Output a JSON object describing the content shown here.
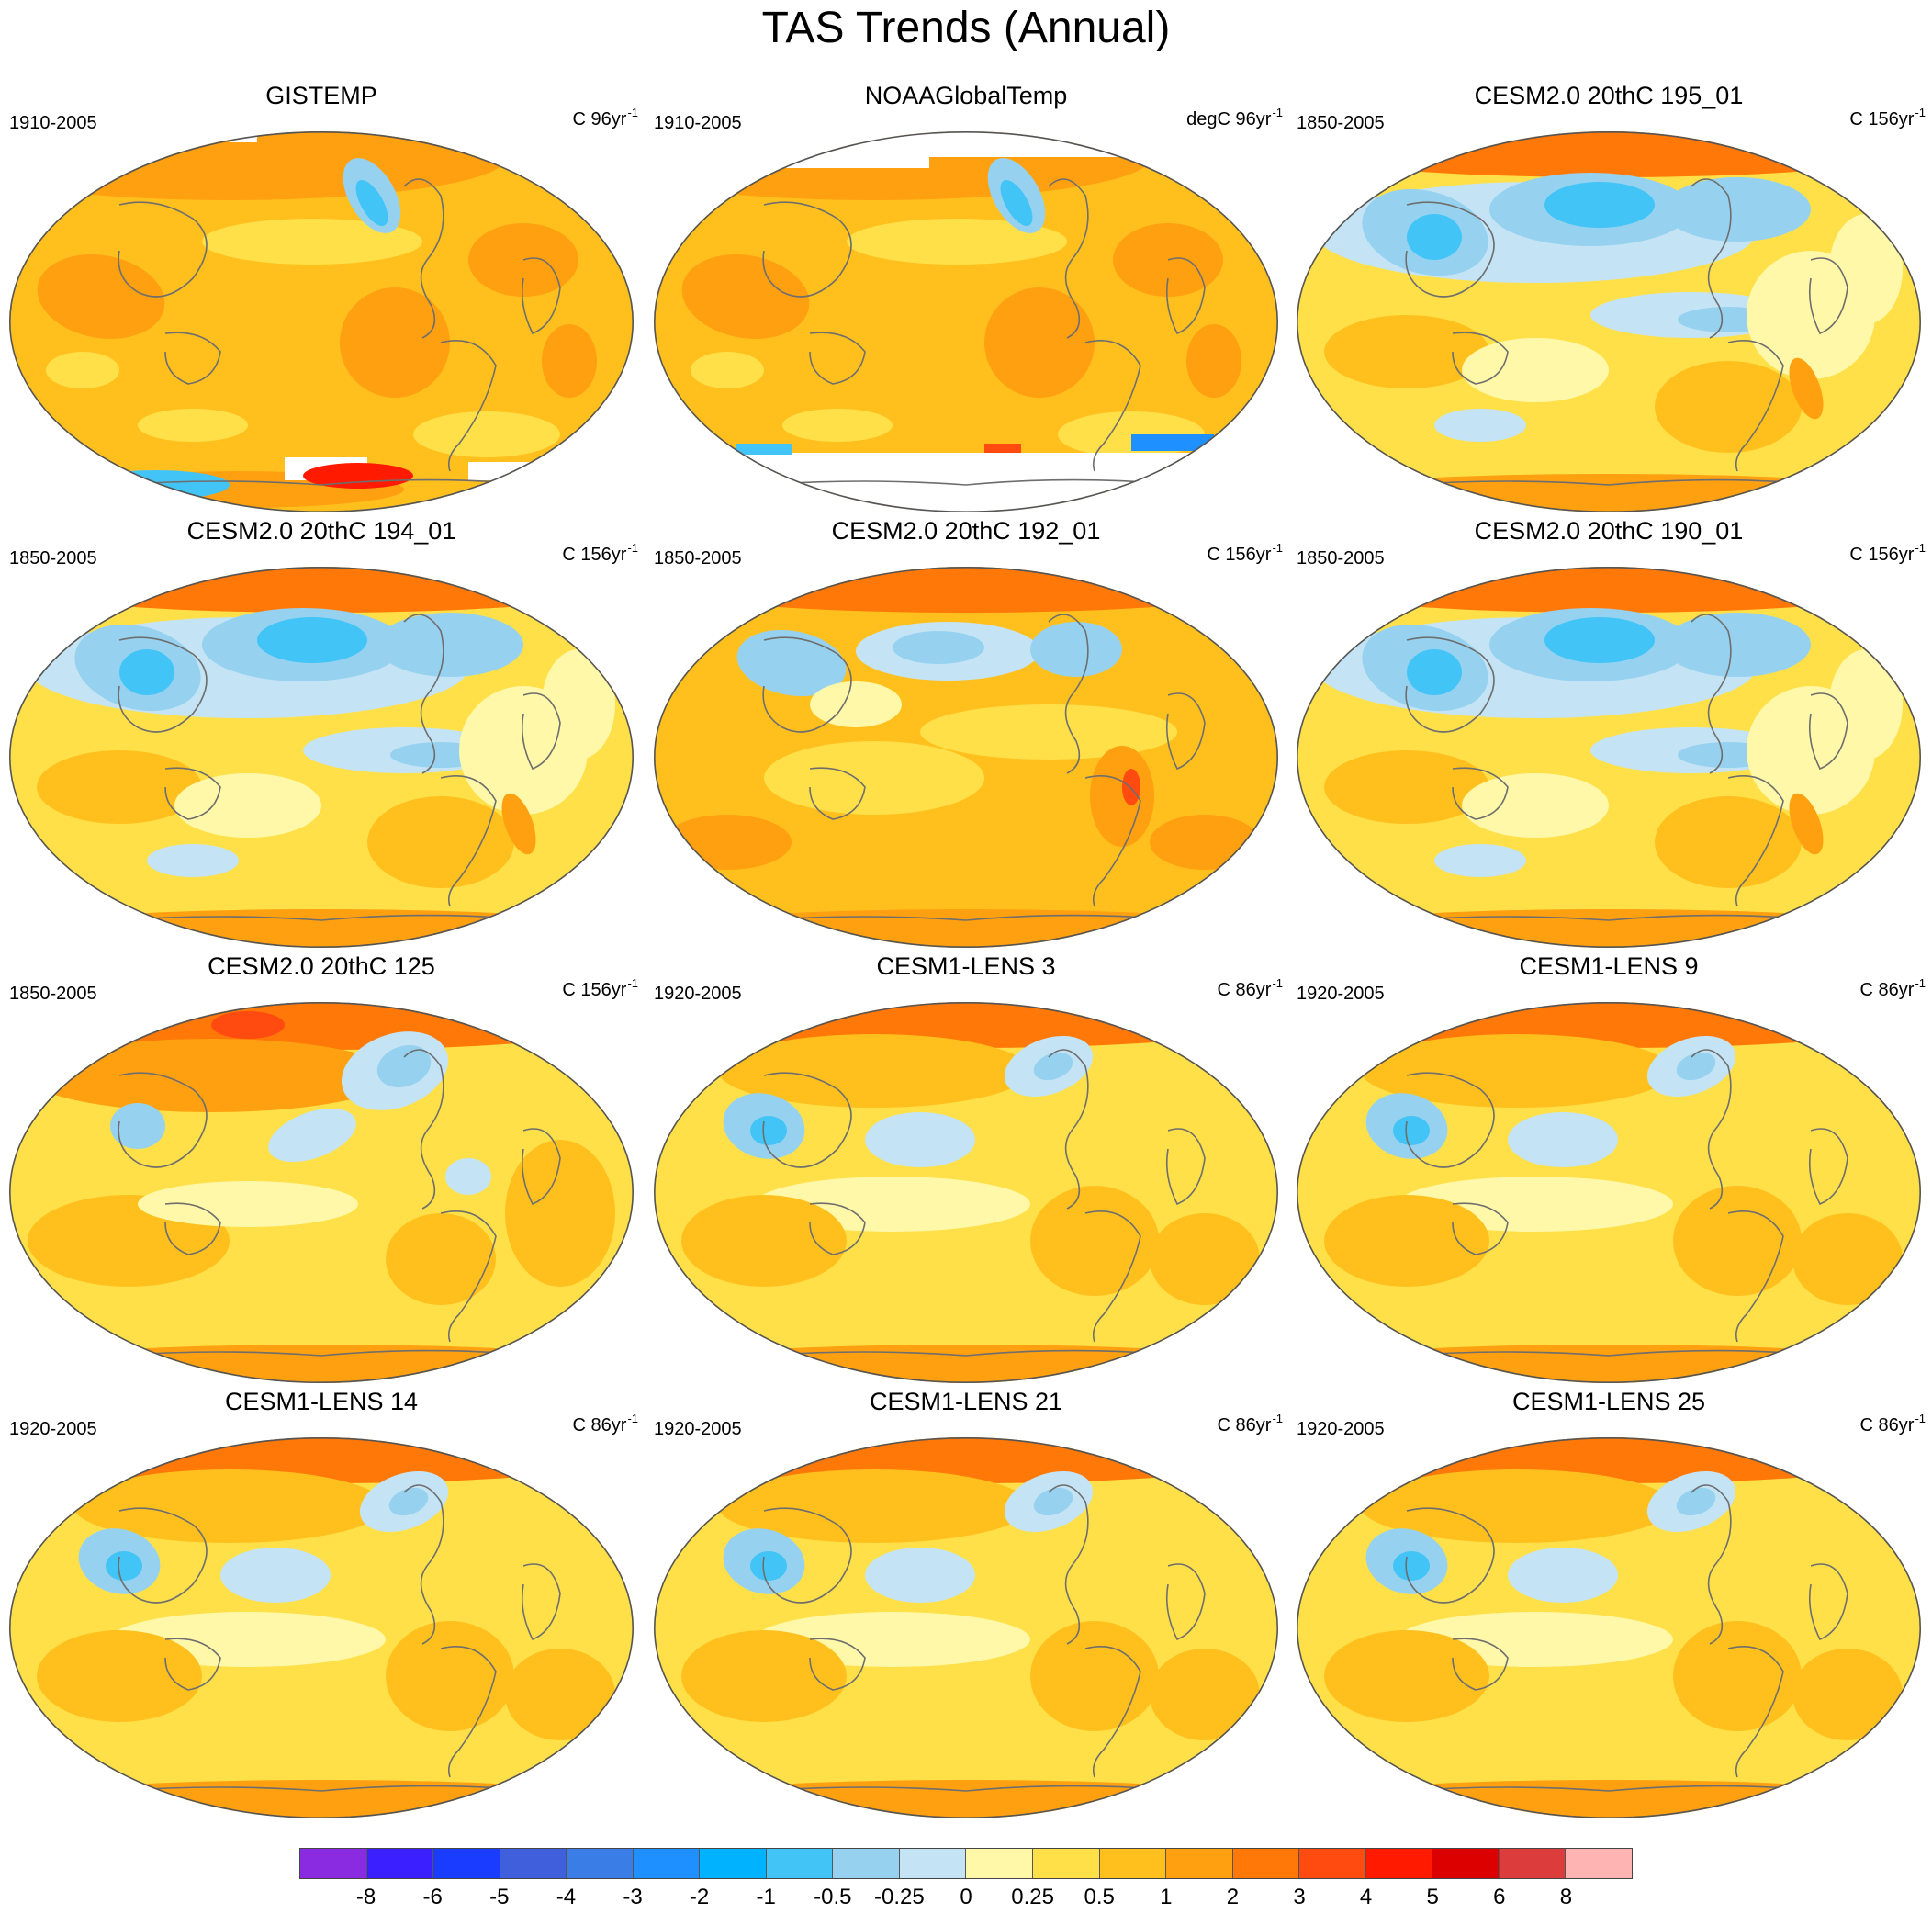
{
  "figure": {
    "title": "TAS Trends (Annual)"
  },
  "panels": [
    {
      "title": "GISTEMP",
      "period": "1910-2005",
      "units": "C 96yr",
      "units_sup": "-1",
      "pattern": "obs",
      "missing": "gistemp"
    },
    {
      "title": "NOAAGlobalTemp",
      "period": "1910-2005",
      "units": "degC 96yr",
      "units_sup": "-1",
      "pattern": "obs",
      "missing": "noaa"
    },
    {
      "title": "CESM2.0 20thC 195_01",
      "period": "1850-2005",
      "units": "C 156yr",
      "units_sup": "-1",
      "pattern": "cold",
      "missing": "none"
    },
    {
      "title": "CESM2.0 20thC 194_01",
      "period": "1850-2005",
      "units": "C 156yr",
      "units_sup": "-1",
      "pattern": "cold",
      "missing": "none"
    },
    {
      "title": "CESM2.0 20thC 192_01",
      "period": "1850-2005",
      "units": "C 156yr",
      "units_sup": "-1",
      "pattern": "mild",
      "missing": "none"
    },
    {
      "title": "CESM2.0 20thC 190_01",
      "period": "1850-2005",
      "units": "C 156yr",
      "units_sup": "-1",
      "pattern": "cold",
      "missing": "none"
    },
    {
      "title": "CESM2.0 20thC 125",
      "period": "1850-2005",
      "units": "C 156yr",
      "units_sup": "-1",
      "pattern": "warm",
      "missing": "none"
    },
    {
      "title": "CESM1-LENS 3",
      "period": "1920-2005",
      "units": "C 86yr",
      "units_sup": "-1",
      "pattern": "lens",
      "missing": "none"
    },
    {
      "title": "CESM1-LENS 9",
      "period": "1920-2005",
      "units": "C 86yr",
      "units_sup": "-1",
      "pattern": "lens",
      "missing": "none"
    },
    {
      "title": "CESM1-LENS 14",
      "period": "1920-2005",
      "units": "C 86yr",
      "units_sup": "-1",
      "pattern": "lens",
      "missing": "none"
    },
    {
      "title": "CESM1-LENS 21",
      "period": "1920-2005",
      "units": "C 86yr",
      "units_sup": "-1",
      "pattern": "lens",
      "missing": "none"
    },
    {
      "title": "CESM1-LENS 25",
      "period": "1920-2005",
      "units": "C 86yr",
      "units_sup": "-1",
      "pattern": "lens",
      "missing": "none"
    }
  ],
  "colorbar": {
    "colors": [
      "#8a2be2",
      "#3b1fff",
      "#1a3cff",
      "#3f5fdc",
      "#3a7de6",
      "#1e90ff",
      "#00b2ff",
      "#42c4f7",
      "#96d2ef",
      "#c4e4f5",
      "#fff8a8",
      "#ffe048",
      "#ffc01e",
      "#ffa010",
      "#ff7808",
      "#ff4a10",
      "#ff1a00",
      "#dc0000",
      "#dc3c3c",
      "#ffb4b4"
    ],
    "labels": [
      "-8",
      "-6",
      "-5",
      "-4",
      "-3",
      "-2",
      "-1",
      "-0.5",
      "-0.25",
      "0",
      "0.25",
      "0.5",
      "1",
      "2",
      "3",
      "4",
      "5",
      "6",
      "8"
    ]
  },
  "styles": {
    "coast": "#6e6e6e",
    "border": "#555555",
    "missing": "#ffffff"
  }
}
